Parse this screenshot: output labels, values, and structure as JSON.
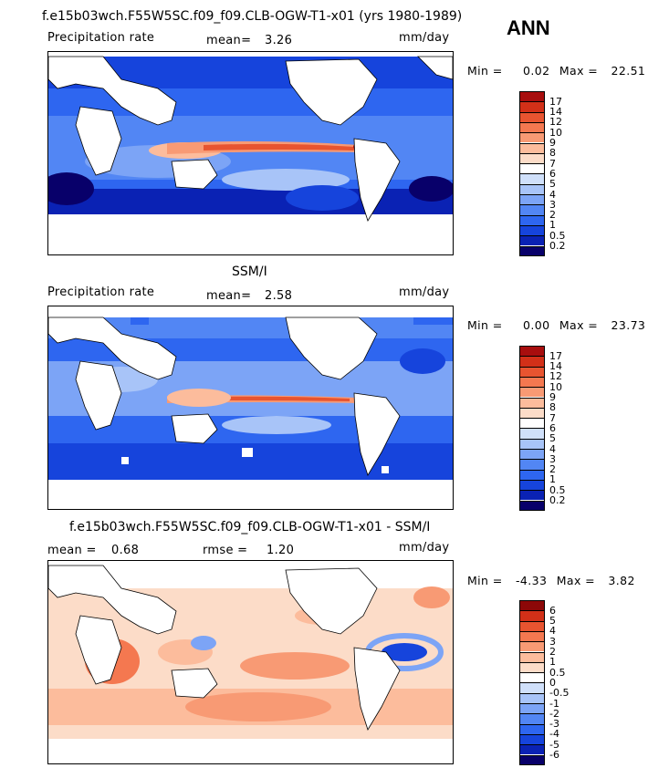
{
  "season": "ANN",
  "colors": {
    "precip": [
      "#08006a",
      "#0a22b4",
      "#1644dc",
      "#2e66f0",
      "#5286f4",
      "#7ca4f6",
      "#a8c4f8",
      "#d0e0fa",
      "#ffffff",
      "#fcdcc8",
      "#fcbc9c",
      "#f89a74",
      "#f47850",
      "#e85430",
      "#d23018",
      "#a80e0e"
    ],
    "diff": [
      "#08006a",
      "#0a22b4",
      "#1644dc",
      "#2e66f0",
      "#5286f4",
      "#7ca4f6",
      "#a8c4f8",
      "#d0e0fa",
      "#ffffff",
      "#fcdcc8",
      "#fcbc9c",
      "#f89a74",
      "#f47850",
      "#e85430",
      "#d23018",
      "#8c0808"
    ]
  },
  "panels": [
    {
      "title": "f.e15b03wch.F55W5SC.f09_f09.CLB-OGW-T1-x01 (yrs 1980-1989)",
      "left_label": "Precipitation rate",
      "stat_label": "mean=",
      "stat_value": "3.26",
      "units": "mm/day",
      "min_label": "Min =",
      "min_value": "0.02",
      "max_label": "Max =",
      "max_value": "22.51",
      "levels": [
        "0.2",
        "0.5",
        "1",
        "2",
        "3",
        "4",
        "5",
        "6",
        "7",
        "8",
        "9",
        "10",
        "12",
        "14",
        "17"
      ]
    },
    {
      "title": "SSM/I",
      "left_label": "Precipitation rate",
      "stat_label": "mean=",
      "stat_value": "2.58",
      "units": "mm/day",
      "min_label": "Min =",
      "min_value": "0.00",
      "max_label": "Max =",
      "max_value": "23.73",
      "levels": [
        "0.2",
        "0.5",
        "1",
        "2",
        "3",
        "4",
        "5",
        "6",
        "7",
        "8",
        "9",
        "10",
        "12",
        "14",
        "17"
      ]
    },
    {
      "title": "f.e15b03wch.F55W5SC.f09_f09.CLB-OGW-T1-x01 - SSM/I",
      "left_label": "mean =",
      "left_value": "0.68",
      "stat_label": "rmse =",
      "stat_value": "1.20",
      "units": "mm/day",
      "min_label": "Min =",
      "min_value": "-4.33",
      "max_label": "Max =",
      "max_value": "3.82",
      "levels": [
        "-6",
        "-5",
        "-4",
        "-3",
        "-2",
        "-1",
        "-0.5",
        "0",
        "0.5",
        "1",
        "2",
        "3",
        "4",
        "5",
        "6"
      ]
    }
  ],
  "chart_data": [
    {
      "type": "heatmap",
      "title": "f.e15b03wch.F55W5SC.f09_f09.CLB-OGW-T1-x01 (yrs 1980-1989)",
      "variable": "Precipitation rate",
      "units": "mm/day",
      "mean": 3.26,
      "min": 0.02,
      "max": 22.51,
      "contour_levels": [
        0.2,
        0.5,
        1,
        2,
        3,
        4,
        5,
        6,
        7,
        8,
        9,
        10,
        12,
        14,
        17
      ]
    },
    {
      "type": "heatmap",
      "title": "SSM/I",
      "variable": "Precipitation rate",
      "units": "mm/day",
      "mean": 2.58,
      "min": 0.0,
      "max": 23.73,
      "contour_levels": [
        0.2,
        0.5,
        1,
        2,
        3,
        4,
        5,
        6,
        7,
        8,
        9,
        10,
        12,
        14,
        17
      ]
    },
    {
      "type": "heatmap",
      "title": "f.e15b03wch.F55W5SC.f09_f09.CLB-OGW-T1-x01 - SSM/I",
      "units": "mm/day",
      "mean": 0.68,
      "rmse": 1.2,
      "min": -4.33,
      "max": 3.82,
      "contour_levels": [
        -6,
        -5,
        -4,
        -3,
        -2,
        -1,
        -0.5,
        0,
        0.5,
        1,
        2,
        3,
        4,
        5,
        6
      ]
    }
  ]
}
